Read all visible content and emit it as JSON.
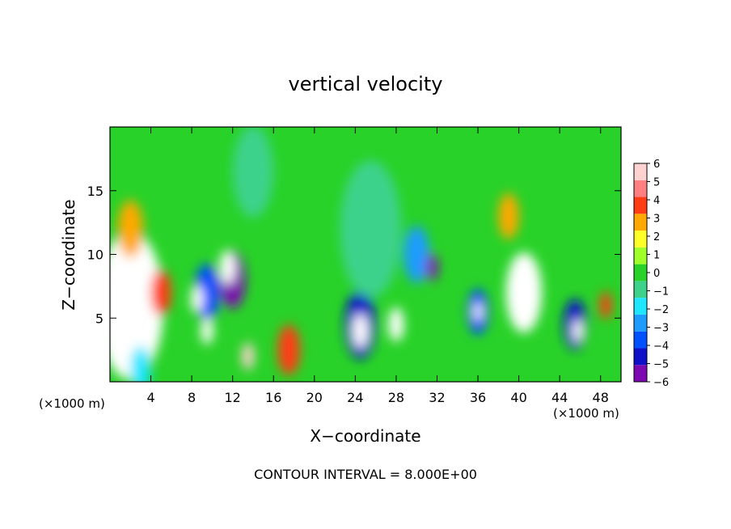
{
  "chart_data": {
    "type": "heatmap",
    "title": "vertical velocity",
    "xlabel": "X−coordinate",
    "ylabel": "Z−coordinate",
    "x_unit": "(×1000 m)",
    "x_unit_right": "(×1000 m)",
    "xlim": [
      0,
      50
    ],
    "ylim": [
      0,
      20
    ],
    "x_ticks": [
      4,
      8,
      12,
      16,
      20,
      24,
      28,
      32,
      36,
      40,
      44,
      48
    ],
    "y_ticks": [
      5,
      10,
      15
    ],
    "colorbar": {
      "levels": [
        6,
        5,
        4,
        3,
        2,
        1,
        0,
        "−1",
        "−2",
        "−3",
        "−4",
        "−5",
        "−6"
      ],
      "range": [
        -6,
        6
      ],
      "colors": [
        "#7d0ab0",
        "#1010c8",
        "#0050ff",
        "#1e9bff",
        "#1ee6ff",
        "#3cd28c",
        "#28d228",
        "#a0ff28",
        "#ffff28",
        "#ffa800",
        "#ff3c14",
        "#ff8080",
        "#ffd2d2"
      ]
    },
    "cells": [
      {
        "x": 2,
        "z": 6,
        "w": 6.5,
        "value": 9
      },
      {
        "x": 2,
        "z": 12,
        "w": 2.5,
        "value": 3
      },
      {
        "x": 5,
        "z": 7,
        "w": 2,
        "value": 4
      },
      {
        "x": 9.5,
        "z": 7,
        "w": 2.5,
        "value": -4
      },
      {
        "x": 12,
        "z": 8,
        "w": 2.5,
        "value": -6
      },
      {
        "x": 11.5,
        "z": 9,
        "w": 1.5,
        "value": 8
      },
      {
        "x": 8.5,
        "z": 6.5,
        "w": 1.2,
        "value": 7
      },
      {
        "x": 9.5,
        "z": 4,
        "w": 1.2,
        "value": 7
      },
      {
        "x": 13.5,
        "z": 2,
        "w": 1.2,
        "value": 6
      },
      {
        "x": 17.5,
        "z": 2.5,
        "w": 2.2,
        "value": 4
      },
      {
        "x": 24.5,
        "z": 4.5,
        "w": 3,
        "value": -5
      },
      {
        "x": 24.5,
        "z": 4,
        "w": 1.5,
        "value": 7
      },
      {
        "x": 28,
        "z": 4.5,
        "w": 1.5,
        "value": 7
      },
      {
        "x": 25.5,
        "z": 12,
        "w": 6,
        "value": -1.3
      },
      {
        "x": 30,
        "z": 10,
        "w": 2.5,
        "value": -3.5
      },
      {
        "x": 31.5,
        "z": 9,
        "w": 1.2,
        "value": -6
      },
      {
        "x": 36,
        "z": 5.5,
        "w": 2,
        "value": -4
      },
      {
        "x": 36,
        "z": 5.5,
        "w": 0.8,
        "value": 7
      },
      {
        "x": 40.5,
        "z": 7,
        "w": 3.5,
        "value": 9
      },
      {
        "x": 39,
        "z": 13,
        "w": 2,
        "value": 3
      },
      {
        "x": 45.5,
        "z": 4.5,
        "w": 2.2,
        "value": -5
      },
      {
        "x": 45.8,
        "z": 4,
        "w": 1,
        "value": 8
      },
      {
        "x": 48.5,
        "z": 6,
        "w": 1.2,
        "value": 4
      },
      {
        "x": 3,
        "z": 1,
        "w": 2,
        "value": -2.5
      },
      {
        "x": 14,
        "z": 16.5,
        "w": 4,
        "value": -1
      }
    ],
    "contour_interval_label": "CONTOUR INTERVAL = 8.000E+00"
  }
}
